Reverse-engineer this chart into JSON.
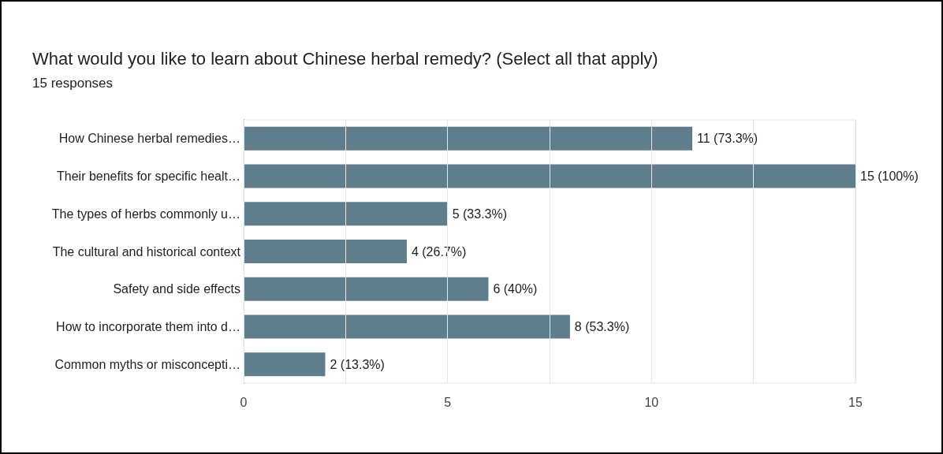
{
  "chart_data": {
    "type": "bar",
    "orientation": "horizontal",
    "title": "What would you like to learn about Chinese herbal remedy? (Select all that apply)",
    "subtitle": "15 responses",
    "categories": [
      "How Chinese herbal remedies…",
      "Their benefits for specific healt…",
      "The types of herbs commonly u…",
      "The cultural and historical context",
      "Safety and side effects",
      "How to incorporate them into d…",
      "Common myths or misconcepti…"
    ],
    "values": [
      11,
      15,
      5,
      4,
      6,
      8,
      2
    ],
    "value_labels": [
      "11 (73.3%)",
      "15 (100%)",
      "5 (33.3%)",
      "4 (26.7%)",
      "6 (40%)",
      "8 (53.3%)",
      "2 (13.3%)"
    ],
    "color": "#607d8b",
    "xlim": [
      0,
      15
    ],
    "xticks": [
      0,
      {
        "value": 2.5,
        "label": null
      },
      5,
      {
        "value": 7.5,
        "label": null
      },
      10,
      {
        "value": 12.5,
        "label": null
      },
      15
    ],
    "grid": "x"
  }
}
